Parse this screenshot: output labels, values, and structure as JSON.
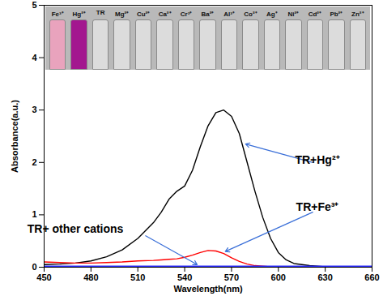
{
  "chart_data": {
    "type": "line",
    "x_label": "Wavelength(nm)",
    "y_label": "Absorbance(a.u.)",
    "xlim": [
      450,
      660
    ],
    "xticks": [
      450,
      480,
      510,
      540,
      570,
      600,
      630,
      660
    ],
    "ylim": [
      0,
      5
    ],
    "yticks": [
      0,
      1,
      2,
      3,
      4,
      5
    ],
    "x": [
      450,
      460,
      470,
      480,
      490,
      500,
      510,
      520,
      525,
      530,
      535,
      540,
      545,
      550,
      555,
      560,
      565,
      570,
      575,
      580,
      585,
      590,
      595,
      600,
      605,
      610,
      620,
      630,
      640,
      650,
      660
    ],
    "series": [
      {
        "name": "TR+Hg²⁺",
        "color": "#000000",
        "values": [
          0.05,
          0.06,
          0.08,
          0.12,
          0.2,
          0.33,
          0.55,
          0.85,
          1.05,
          1.3,
          1.45,
          1.55,
          1.85,
          2.3,
          2.7,
          2.95,
          3.0,
          2.88,
          2.55,
          2.0,
          1.45,
          0.95,
          0.55,
          0.28,
          0.14,
          0.07,
          0.03,
          0.01,
          0,
          0,
          0
        ]
      },
      {
        "name": "TR+Fe³⁺",
        "color": "#ff0000",
        "values": [
          0.1,
          0.09,
          0.08,
          0.08,
          0.09,
          0.1,
          0.12,
          0.13,
          0.14,
          0.15,
          0.16,
          0.19,
          0.23,
          0.28,
          0.32,
          0.31,
          0.26,
          0.18,
          0.11,
          0.06,
          0.03,
          0.02,
          0.01,
          0.01,
          0.01,
          0.01,
          0.01,
          0,
          0,
          0,
          0
        ]
      },
      {
        "name": "TR+ other cations",
        "color": "#2a2aff",
        "values": [
          0.02,
          0.02,
          0.02,
          0.02,
          0.02,
          0.02,
          0.02,
          0.02,
          0.02,
          0.02,
          0.02,
          0.02,
          0.02,
          0.02,
          0.02,
          0.02,
          0.02,
          0.02,
          0.02,
          0.02,
          0.02,
          0.02,
          0.02,
          0.02,
          0.02,
          0.02,
          0.02,
          0.02,
          0.02,
          0.02,
          0.02
        ]
      }
    ],
    "inset": {
      "labels": [
        "Fe³⁺",
        "Hg²⁺",
        "TR",
        "Mg²⁺",
        "Cu²⁺",
        "Ca²⁺",
        "Cr³⁺",
        "Ba²⁺",
        "Al³⁺",
        "Co²⁺",
        "Ag⁺",
        "Ni²⁺",
        "Cd²⁺",
        "Pb²⁺",
        "Zn²⁺"
      ],
      "colors": [
        "#e9a3bd",
        "#a3178f",
        "#dcdcdc",
        "#dcdcdc",
        "#dcdcdc",
        "#dcdcdc",
        "#dcdcdc",
        "#dcdcdc",
        "#dcdcdc",
        "#dcdcdc",
        "#dcdcdc",
        "#dcdcdc",
        "#dcdcdc",
        "#dcdcdc",
        "#dcdcdc"
      ]
    }
  }
}
